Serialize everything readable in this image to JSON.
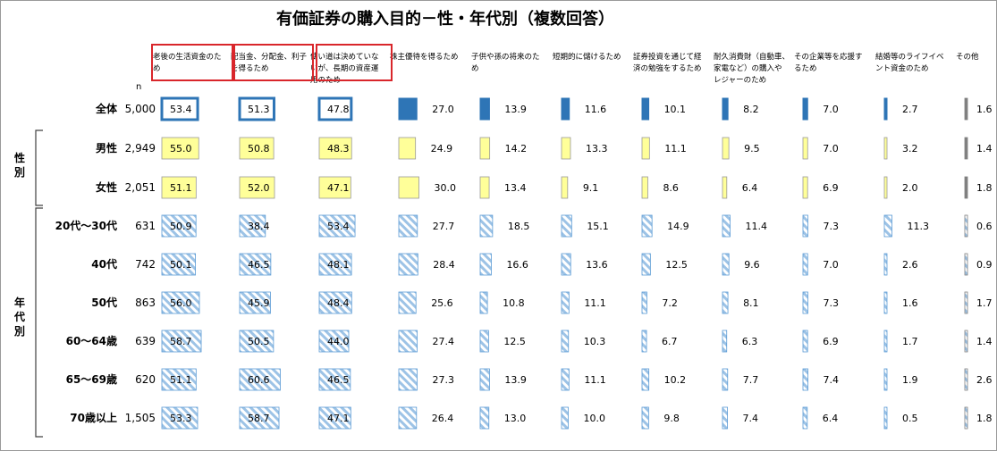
{
  "chart_data": {
    "type": "bar",
    "title": "有価証券の購入目的－性・年代別（複数回答）",
    "n_label": "n",
    "categories": [
      "老後の生活資金のため",
      "配当金、分配金、利子を得るため",
      "使い道は決めていないが、長期の資産運用のため",
      "株主優待を得るため",
      "子供や孫の将来のため",
      "短期的に儲けるため",
      "証券投資を通じて経済の勉強をするため",
      "耐久消費財（自動車、家電など）の購入やレジャーのため",
      "その企業等を応援するため",
      "結婚等のライフイベント資金のため",
      "その他"
    ],
    "header_lines": [
      [
        "老後の生活資金のた",
        "め"
      ],
      [
        "配当金、分配金、利子",
        "を得るため"
      ],
      [
        "使い道は決めていな",
        "いが、長期の資産運",
        "用のため"
      ],
      [
        "株主優待を得るため"
      ],
      [
        "子供や孫の将来のた",
        "め"
      ],
      [
        "短期的に儲けるため"
      ],
      [
        "証券投資を通じて経",
        "済の勉強をするため"
      ],
      [
        "耐久消費財（自動車、",
        "家電など）の購入や",
        "レジャーのため"
      ],
      [
        "その企業等を応援す",
        "るため"
      ],
      [
        "結婚等のライフイベ",
        "ント資金のため"
      ],
      [
        "その他"
      ]
    ],
    "highlighted_columns": [
      0,
      1,
      2
    ],
    "group_labels": [
      {
        "label": "性\n別",
        "rows": [
          1,
          2
        ]
      },
      {
        "label": "年\n代\n別",
        "rows": [
          3,
          4,
          5,
          6,
          7,
          8
        ]
      }
    ],
    "rows": [
      {
        "label": "全体",
        "n": "5,000",
        "style": "total",
        "values": [
          53.4,
          51.3,
          47.8,
          27.0,
          13.9,
          11.6,
          10.1,
          8.2,
          7.0,
          2.7,
          1.6
        ]
      },
      {
        "label": "男性",
        "n": "2,949",
        "style": "gender",
        "values": [
          55.0,
          50.8,
          48.3,
          24.9,
          14.2,
          13.3,
          11.1,
          9.5,
          7.0,
          3.2,
          1.4
        ]
      },
      {
        "label": "女性",
        "n": "2,051",
        "style": "gender",
        "values": [
          51.1,
          52.0,
          47.1,
          30.0,
          13.4,
          9.1,
          8.6,
          6.4,
          6.9,
          2.0,
          1.8
        ]
      },
      {
        "label": "20代～30代",
        "n": "631",
        "style": "age",
        "values": [
          50.9,
          38.4,
          53.4,
          27.7,
          18.5,
          15.1,
          14.9,
          11.4,
          7.3,
          11.3,
          0.6
        ]
      },
      {
        "label": "40代",
        "n": "742",
        "style": "age",
        "values": [
          50.1,
          46.5,
          48.1,
          28.4,
          16.6,
          13.6,
          12.5,
          9.6,
          7.0,
          2.6,
          0.9
        ]
      },
      {
        "label": "50代",
        "n": "863",
        "style": "age",
        "values": [
          56.0,
          45.9,
          48.4,
          25.6,
          10.8,
          11.1,
          7.2,
          8.1,
          7.3,
          1.6,
          1.7
        ]
      },
      {
        "label": "60～64歳",
        "n": "639",
        "style": "age",
        "values": [
          58.7,
          50.5,
          44.0,
          27.4,
          12.5,
          10.3,
          6.7,
          6.3,
          6.9,
          1.7,
          1.4
        ]
      },
      {
        "label": "65～69歳",
        "n": "620",
        "style": "age",
        "values": [
          51.1,
          60.6,
          46.5,
          27.3,
          13.9,
          11.1,
          10.2,
          7.7,
          7.4,
          1.9,
          2.6
        ]
      },
      {
        "label": "70歳以上",
        "n": "1,505",
        "style": "age",
        "values": [
          53.3,
          58.7,
          47.1,
          26.4,
          13.0,
          10.0,
          9.8,
          7.4,
          6.4,
          0.5,
          1.8
        ]
      }
    ],
    "colors": {
      "total_fill": "#2e75b6",
      "total_border": "#2e75b6",
      "gender_fill": "#ffff99",
      "gender_border": "#999999",
      "age_hatch": "#9dc3e6",
      "age_border": "#5b9bd5",
      "highlight_box": "#d9262b",
      "bracket": "#404040"
    }
  }
}
